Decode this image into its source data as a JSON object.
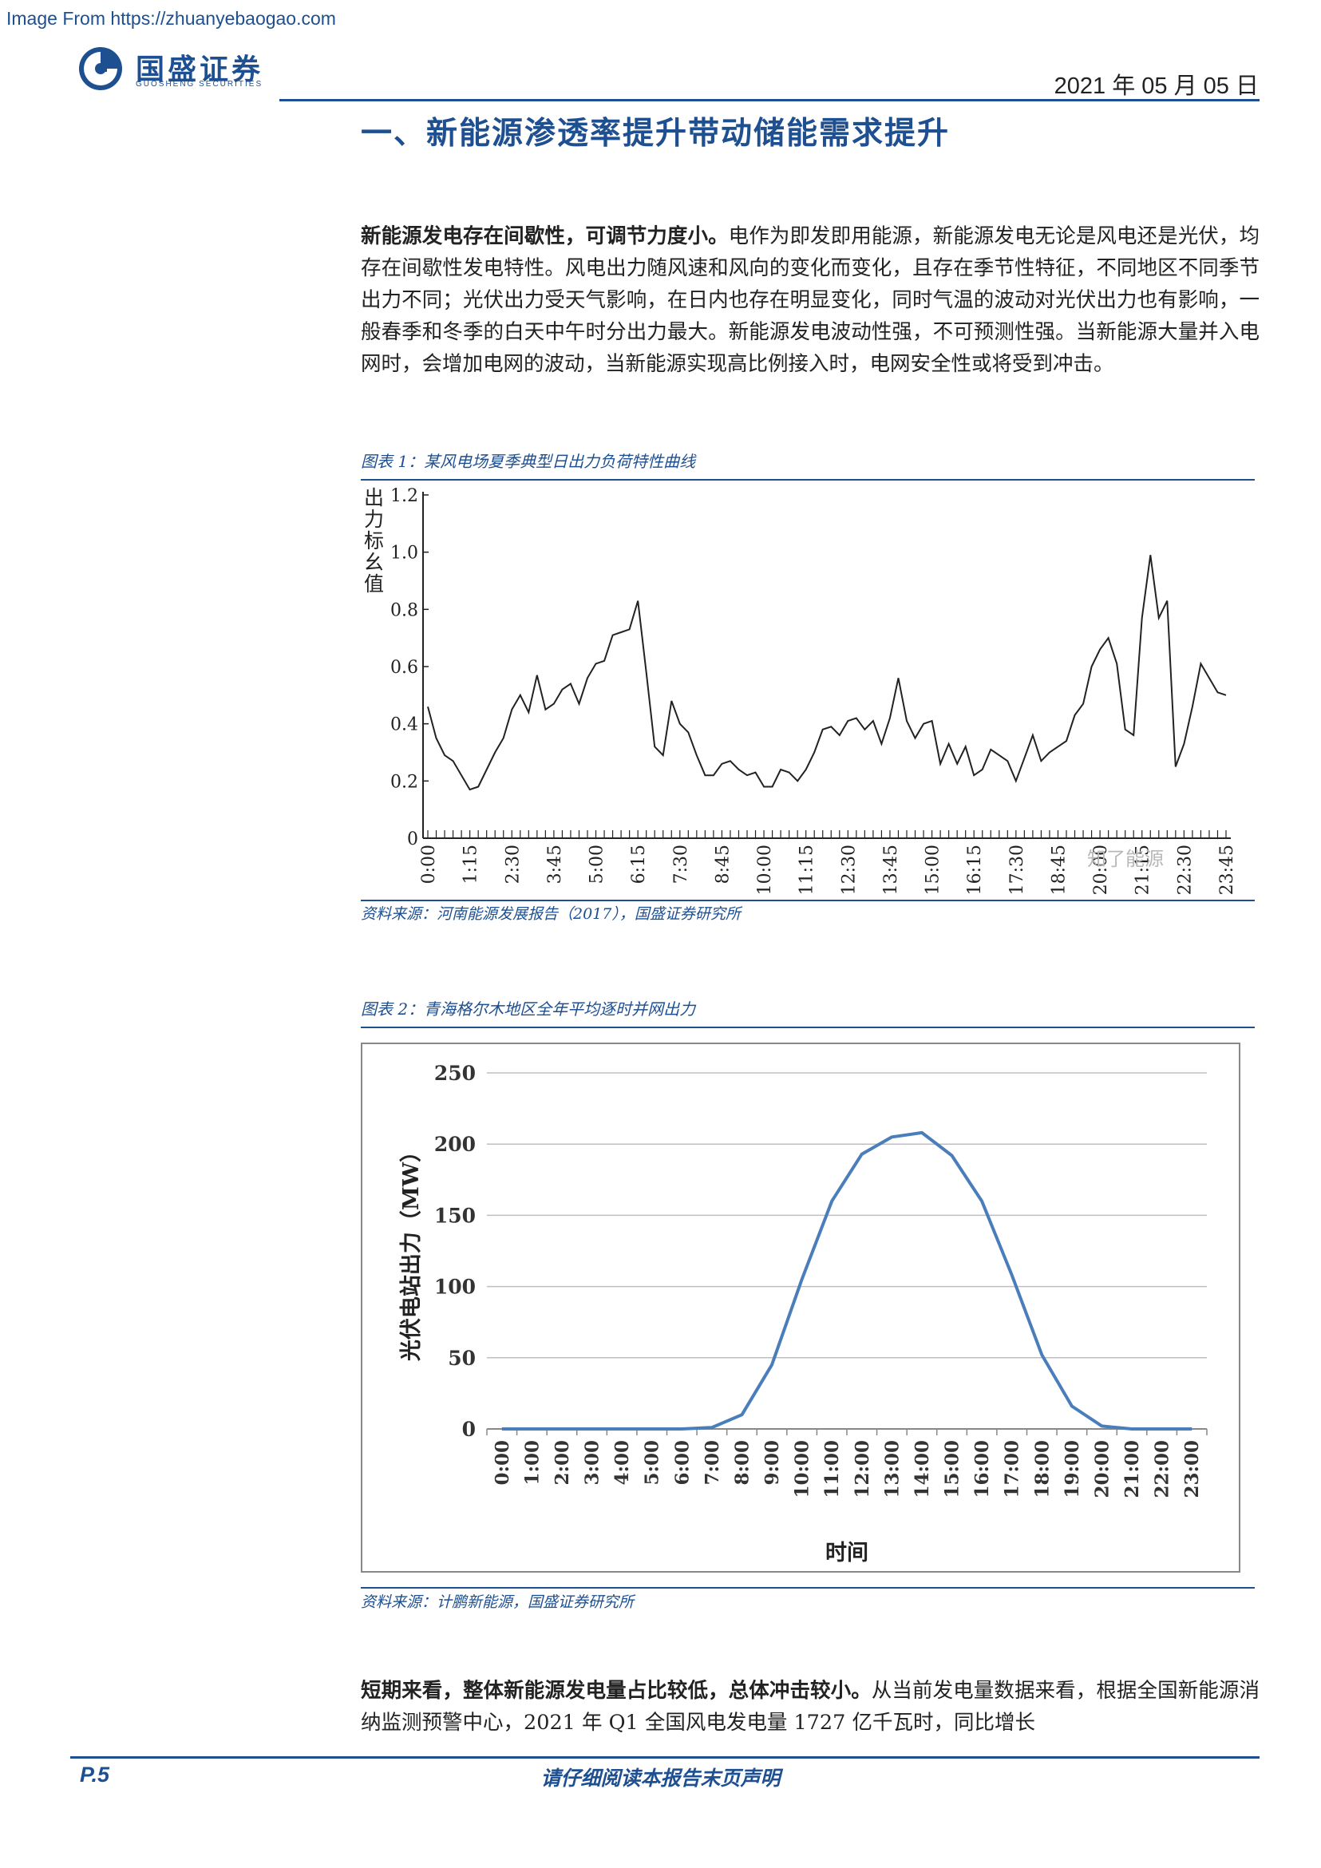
{
  "watermark": "Image From https://zhuanyebaogao.com",
  "header": {
    "logo_name": "国盛证券",
    "logo_sub": "GUOSHENG SECURITIES",
    "date": "2021 年 05 月 05 日"
  },
  "section_title": "一、新能源渗透率提升带动储能需求提升",
  "para1": {
    "lead": "新能源发电存在间歇性，可调节力度小。",
    "body": "电作为即发即用能源，新能源发电无论是风电还是光伏，均存在间歇性发电特性。风电出力随风速和风向的变化而变化，且存在季节性特征，不同地区不同季节出力不同；光伏出力受天气影响，在日内也存在明显变化，同时气温的波动对光伏出力也有影响，一般春季和冬季的白天中午时分出力最大。新能源发电波动性强，不可预测性强。当新能源大量并入电网时，会增加电网的波动，当新能源实现高比例接入时，电网安全性或将受到冲击。"
  },
  "figure1": {
    "caption": "图表 1：某风电场夏季典型日出力负荷特性曲线",
    "source": "资料来源：河南能源发展报告（2017），国盛证券研究所",
    "watermark_text": "知了能源"
  },
  "figure2": {
    "caption": "图表 2：青海格尔木地区全年平均逐时并网出力",
    "source": "资料来源：计鹏新能源，国盛证券研究所"
  },
  "para2": {
    "lead": "短期来看，整体新能源发电量占比较低，总体冲击较小。",
    "body": "从当前发电量数据来看，根据全国新能源消纳监测预警中心，2021 年 Q1 全国风电发电量 1727 亿千瓦时，同比增长"
  },
  "footer": {
    "page": "P.5",
    "disclaimer": "请仔细阅读本报告末页声明"
  },
  "chart_data": [
    {
      "type": "line",
      "ylabel": "出力标幺值",
      "ylim": [
        0,
        1.2
      ],
      "yticks": [
        "0",
        "0.2",
        "0.4",
        "0.6",
        "0.8",
        "1.0",
        "1.2"
      ],
      "xtick_labels": [
        "0:00",
        "1:15",
        "2:30",
        "3:45",
        "5:00",
        "6:15",
        "7:30",
        "8:45",
        "10:00",
        "11:15",
        "12:30",
        "13:45",
        "15:00",
        "16:15",
        "17:30",
        "18:45",
        "20:00",
        "21:15",
        "22:30",
        "23:45"
      ],
      "x_interval_minutes": 15,
      "values": [
        0.46,
        0.35,
        0.29,
        0.27,
        0.22,
        0.17,
        0.18,
        0.24,
        0.3,
        0.35,
        0.45,
        0.5,
        0.44,
        0.57,
        0.45,
        0.47,
        0.52,
        0.54,
        0.47,
        0.56,
        0.61,
        0.62,
        0.71,
        0.72,
        0.73,
        0.83,
        0.58,
        0.32,
        0.29,
        0.48,
        0.4,
        0.37,
        0.29,
        0.22,
        0.22,
        0.26,
        0.27,
        0.24,
        0.22,
        0.23,
        0.18,
        0.18,
        0.24,
        0.23,
        0.2,
        0.24,
        0.3,
        0.38,
        0.39,
        0.36,
        0.41,
        0.42,
        0.38,
        0.41,
        0.33,
        0.42,
        0.56,
        0.41,
        0.35,
        0.4,
        0.41,
        0.26,
        0.33,
        0.26,
        0.32,
        0.22,
        0.24,
        0.31,
        0.29,
        0.27,
        0.2,
        0.28,
        0.36,
        0.27,
        0.3,
        0.32,
        0.34,
        0.43,
        0.47,
        0.6,
        0.66,
        0.7,
        0.61,
        0.38,
        0.36,
        0.77,
        0.99,
        0.77,
        0.83,
        0.25,
        0.33,
        0.46,
        0.61,
        0.56,
        0.51,
        0.5
      ]
    },
    {
      "type": "line",
      "xlabel": "时间",
      "ylabel": "光伏电站出力（MW）",
      "ylim": [
        0,
        250
      ],
      "yticks": [
        "0",
        "50",
        "100",
        "150",
        "200",
        "250"
      ],
      "categories": [
        "0:00",
        "1:00",
        "2:00",
        "3:00",
        "4:00",
        "5:00",
        "6:00",
        "7:00",
        "8:00",
        "9:00",
        "10:00",
        "11:00",
        "12:00",
        "13:00",
        "14:00",
        "15:00",
        "16:00",
        "17:00",
        "18:00",
        "19:00",
        "20:00",
        "21:00",
        "22:00",
        "23:00"
      ],
      "values": [
        0,
        0,
        0,
        0,
        0,
        0,
        0,
        1,
        10,
        45,
        105,
        160,
        193,
        205,
        208,
        192,
        160,
        108,
        52,
        16,
        2,
        0,
        0,
        0
      ],
      "color": "#4a7ebb",
      "grid": true
    }
  ]
}
